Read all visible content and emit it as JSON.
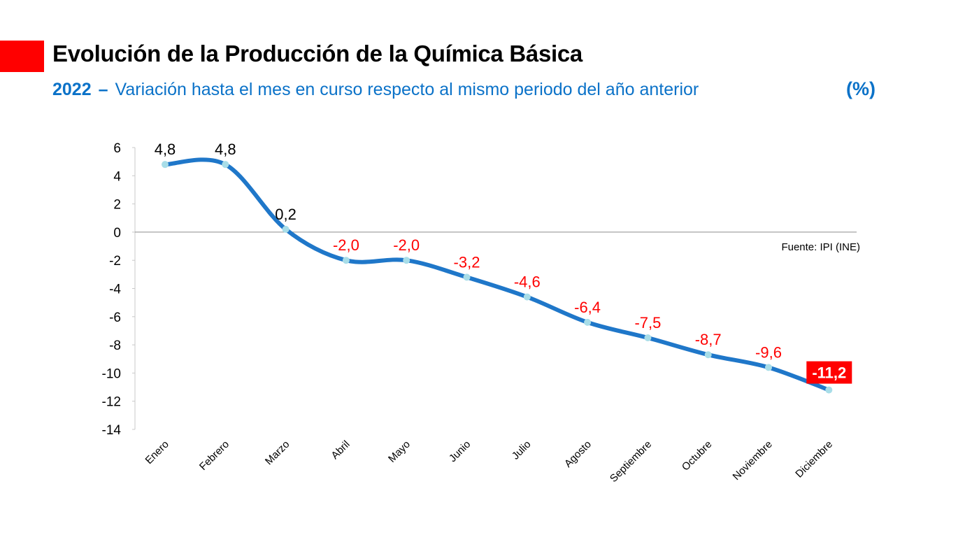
{
  "header": {
    "title": "Evolución de la Producción de la Química Básica",
    "subtitle_year": "2022",
    "subtitle_dash": "–",
    "subtitle_text": "Variación hasta el mes en curso respecto al mismo periodo del año anterior",
    "unit": "(%)"
  },
  "colors": {
    "accent": "#ff0000",
    "series_line": "#1f77c9",
    "markers": "#a8dde8",
    "subtitle": "#0b72c8",
    "negative_label": "#ff0000",
    "positive_label": "#000000"
  },
  "chart_data": {
    "type": "line",
    "title": "Evolución de la Producción de la Química Básica",
    "categories": [
      "Enero",
      "Febrero",
      "Marzo",
      "Abril",
      "Mayo",
      "Junio",
      "Julio",
      "Agosto",
      "Septiembre",
      "Octubre",
      "Noviembre",
      "Diciembre"
    ],
    "series": [
      {
        "values": [
          4.8,
          4.8,
          0.2,
          -2.0,
          -2.0,
          -3.2,
          -4.6,
          -6.4,
          -7.5,
          -8.7,
          -9.6,
          -11.2
        ],
        "labels": [
          "4,8",
          "4,8",
          "0,2",
          "-2,0",
          "-2,0",
          "-3,2",
          "-4,6",
          "-6,4",
          "-7,5",
          "-8,7",
          "-9,6",
          "-11,2"
        ]
      }
    ],
    "ylim": [
      -14,
      6
    ],
    "yticks": [
      "6",
      "4",
      "2",
      "0",
      "-2",
      "-4",
      "-6",
      "-8",
      "-10",
      "-12",
      "-14"
    ],
    "xlabel": "",
    "ylabel": "",
    "grid": false,
    "smooth": true,
    "highlight_last": true,
    "source_note": "Fuente: IPI (INE)"
  }
}
